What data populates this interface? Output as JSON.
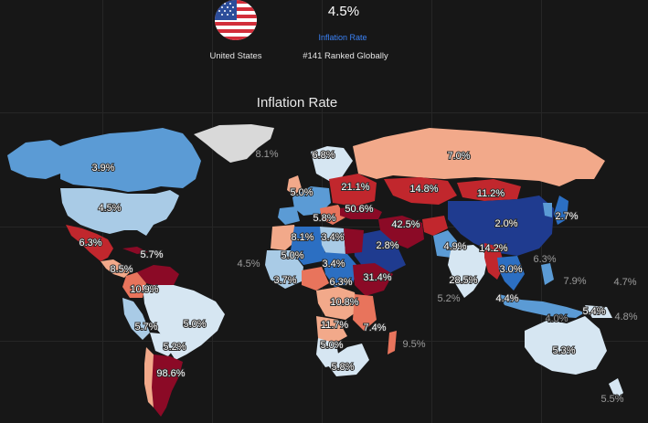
{
  "header": {
    "value": "4.5%",
    "metric_label": "Inflation Rate",
    "country": "United States",
    "rank": "#141 Ranked Globally",
    "flag_icon": "us-flag-icon"
  },
  "map": {
    "title": "Inflation Rate",
    "colors": {
      "background": "#171717",
      "very_low": "#1f3b8f",
      "low": "#2c6fc2",
      "mid_low": "#5b9bd5",
      "light": "#a9cbe6",
      "pale": "#d6e6f2",
      "warm": "#f2a98a",
      "orange": "#e8745c",
      "red": "#c1272d",
      "dark_red": "#8b0a26",
      "no_data": "#d9d9d9"
    },
    "labels": {
      "canada": "3.9%",
      "usa": "4.5%",
      "mexico": "6.3%",
      "caribbean": "5.7%",
      "central_america": "8.5%",
      "atlantic": "4.5%",
      "colombia": "10.9%",
      "peru": "5.7%",
      "brazil": "5.0%",
      "bolivia": "5.2%",
      "argentina": "98.6%",
      "greenland": "8.1%",
      "scandinavia": "6.8%",
      "uk": "5.0%",
      "poland": "21.1%",
      "balkans": "5.8%",
      "turkey": "50.6%",
      "iran": "42.5%",
      "kazakhstan": "14.8%",
      "russia": "7.0%",
      "mongolia": "11.2%",
      "china": "2.0%",
      "japan": "2.7%",
      "morocco": "8.1%",
      "algeria": "3.4%",
      "saudi": "2.8%",
      "pakistan": "4.9%",
      "myanmar": "14.2%",
      "thailand": "3.0%",
      "philippines": "6.3%",
      "pacific_small": "7.9%",
      "pacific_east": "4.7%",
      "mali": "5.0%",
      "ghana": "3.7%",
      "nigeria": "6.3%",
      "sudan": "3.4%",
      "ethiopia": "31.4%",
      "india": "28.5%",
      "sri_lanka": "5.2%",
      "malaysia": "4.4%",
      "indonesia": "4.0%",
      "png": "5.4%",
      "solomon": "4.8%",
      "drc": "10.8%",
      "angola": "11.7%",
      "tanzania": "7.4%",
      "madagascar": "9.5%",
      "namibia": "5.0%",
      "south_africa": "5.8%",
      "australia": "5.3%",
      "nz": "5.5%"
    }
  }
}
